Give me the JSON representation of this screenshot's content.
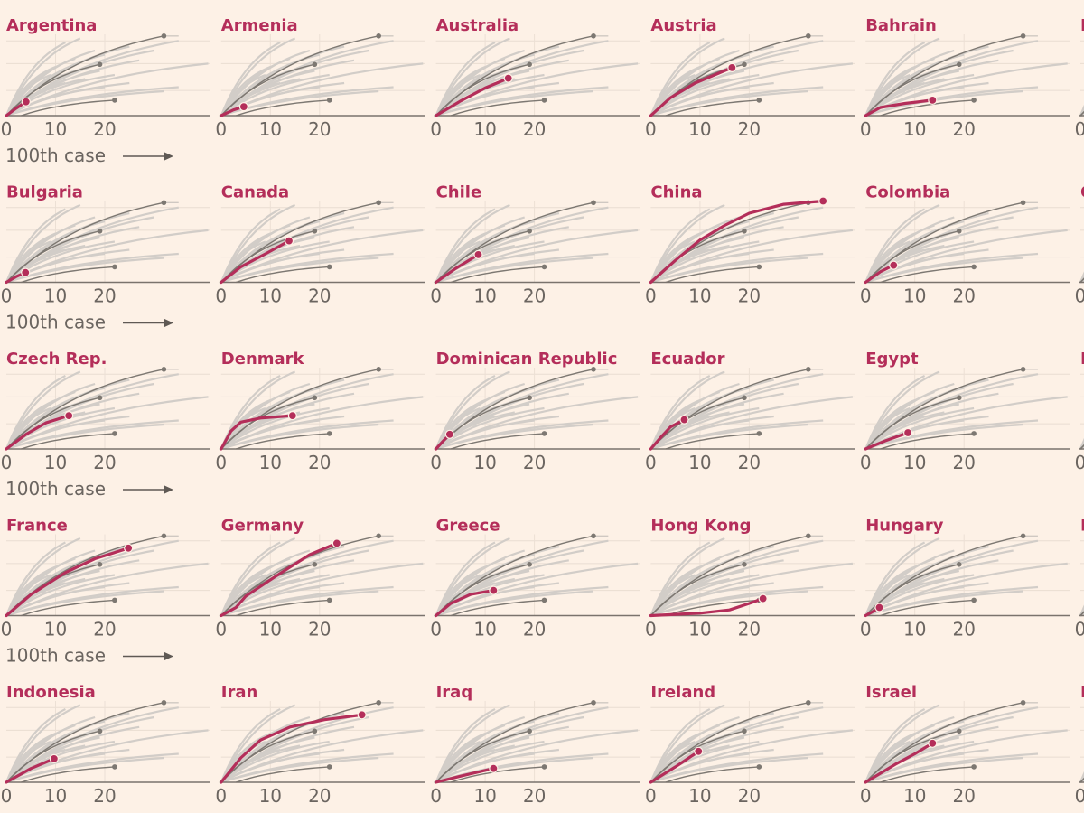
{
  "chart_data": {
    "type": "line",
    "layout": "small-multiples",
    "x_axis": {
      "ticks": [
        "0",
        "10",
        "20"
      ],
      "tick_values": [
        0,
        10,
        20
      ],
      "range": [
        0,
        42
      ],
      "label": "100th case"
    },
    "y_axis": {
      "scale": "relative level (log cases)",
      "range": [
        0,
        1
      ],
      "gridlines": [
        0.31,
        0.64,
        0.92
      ]
    },
    "highlight_color": "#b42e5a",
    "reference_color": "#7d7872",
    "background_color": "#d2cdc8",
    "reference_series": [
      {
        "end": [
          32,
          0.98
        ],
        "tail": 35
      },
      {
        "end": [
          19,
          0.63
        ],
        "tail": 19
      },
      {
        "start": 3,
        "end": [
          22,
          0.19
        ],
        "tail": 22
      }
    ],
    "background_series": [
      [
        12,
        0.9
      ],
      [
        15,
        0.95
      ],
      [
        18,
        0.8
      ],
      [
        20,
        0.75
      ],
      [
        25,
        0.85
      ],
      [
        30,
        0.8
      ],
      [
        14,
        0.7
      ],
      [
        17,
        0.6
      ],
      [
        19,
        0.55
      ],
      [
        10,
        0.6
      ],
      [
        22,
        0.5
      ],
      [
        35,
        0.35
      ],
      [
        32,
        0.3
      ],
      [
        16,
        0.45
      ],
      [
        12,
        0.4
      ],
      [
        9,
        0.5
      ],
      [
        20,
        0.35
      ],
      [
        25,
        0.4
      ],
      [
        41,
        0.64
      ],
      [
        35,
        0.92
      ],
      [
        27,
        0.68
      ],
      [
        8,
        0.3
      ]
    ],
    "panels": [
      {
        "name": "Argentina",
        "points": [
          [
            0,
            0
          ],
          [
            2,
            0.09
          ],
          [
            4,
            0.17
          ]
        ]
      },
      {
        "name": "Armenia",
        "points": [
          [
            0,
            0
          ],
          [
            2.5,
            0.07
          ],
          [
            4.6,
            0.11
          ]
        ]
      },
      {
        "name": "Australia",
        "points": [
          [
            0,
            0
          ],
          [
            5,
            0.18
          ],
          [
            10,
            0.34
          ],
          [
            14.7,
            0.46
          ]
        ]
      },
      {
        "name": "Austria",
        "points": [
          [
            0,
            0
          ],
          [
            4,
            0.22
          ],
          [
            9,
            0.4
          ],
          [
            16.5,
            0.59
          ]
        ]
      },
      {
        "name": "Bahrain",
        "points": [
          [
            0,
            0
          ],
          [
            3,
            0.1
          ],
          [
            8,
            0.15
          ],
          [
            13.6,
            0.19
          ]
        ]
      },
      {
        "name": "B",
        "points": []
      },
      {
        "name": "Bulgaria",
        "points": [
          [
            0,
            0
          ],
          [
            2,
            0.07
          ],
          [
            3.9,
            0.12
          ]
        ]
      },
      {
        "name": "Canada",
        "points": [
          [
            0,
            0
          ],
          [
            4,
            0.19
          ],
          [
            9,
            0.35
          ],
          [
            13.8,
            0.51
          ]
        ]
      },
      {
        "name": "Chile",
        "points": [
          [
            0,
            0
          ],
          [
            4,
            0.17
          ],
          [
            8.6,
            0.34
          ]
        ]
      },
      {
        "name": "China",
        "points": [
          [
            0,
            0
          ],
          [
            5,
            0.27
          ],
          [
            10,
            0.52
          ],
          [
            15,
            0.7
          ],
          [
            20,
            0.85
          ],
          [
            27,
            0.96
          ],
          [
            35,
            1.0
          ]
        ]
      },
      {
        "name": "Colombia",
        "points": [
          [
            0,
            0
          ],
          [
            3,
            0.13
          ],
          [
            5.7,
            0.21
          ]
        ]
      },
      {
        "name": "C",
        "points": []
      },
      {
        "name": "Czech Rep.",
        "points": [
          [
            0,
            0
          ],
          [
            4,
            0.18
          ],
          [
            8,
            0.32
          ],
          [
            12.7,
            0.41
          ]
        ]
      },
      {
        "name": "Denmark",
        "points": [
          [
            0,
            0
          ],
          [
            2,
            0.22
          ],
          [
            4,
            0.33
          ],
          [
            8,
            0.38
          ],
          [
            14.5,
            0.41
          ]
        ]
      },
      {
        "name": "Dominican Republic",
        "points": [
          [
            0,
            0
          ],
          [
            1.5,
            0.1
          ],
          [
            2.8,
            0.18
          ]
        ]
      },
      {
        "name": "Ecuador",
        "points": [
          [
            0,
            0
          ],
          [
            2,
            0.14
          ],
          [
            4,
            0.27
          ],
          [
            6.8,
            0.36
          ]
        ]
      },
      {
        "name": "Egypt",
        "points": [
          [
            0,
            0
          ],
          [
            4,
            0.1
          ],
          [
            8.6,
            0.2
          ]
        ]
      },
      {
        "name": "E",
        "points": []
      },
      {
        "name": "France",
        "points": [
          [
            0,
            0
          ],
          [
            5,
            0.26
          ],
          [
            12,
            0.53
          ],
          [
            18,
            0.7
          ],
          [
            24.8,
            0.83
          ]
        ]
      },
      {
        "name": "Germany",
        "points": [
          [
            0,
            0
          ],
          [
            3,
            0.1
          ],
          [
            5,
            0.24
          ],
          [
            12,
            0.52
          ],
          [
            18,
            0.75
          ],
          [
            23.5,
            0.89
          ]
        ]
      },
      {
        "name": "Greece",
        "points": [
          [
            0,
            0
          ],
          [
            3,
            0.15
          ],
          [
            7,
            0.26
          ],
          [
            11.7,
            0.31
          ]
        ]
      },
      {
        "name": "Hong Kong",
        "points": [
          [
            0,
            0
          ],
          [
            10,
            0.03
          ],
          [
            16,
            0.07
          ],
          [
            20,
            0.15
          ],
          [
            22.8,
            0.21
          ]
        ]
      },
      {
        "name": "Hungary",
        "points": [
          [
            0,
            0
          ],
          [
            1.5,
            0.05
          ],
          [
            2.8,
            0.1
          ]
        ]
      },
      {
        "name": "I",
        "points": []
      },
      {
        "name": "Indonesia",
        "points": [
          [
            0,
            0
          ],
          [
            5,
            0.17
          ],
          [
            9.7,
            0.29
          ]
        ]
      },
      {
        "name": "Iran",
        "points": [
          [
            0,
            0
          ],
          [
            4,
            0.3
          ],
          [
            8,
            0.52
          ],
          [
            14,
            0.68
          ],
          [
            21,
            0.77
          ],
          [
            28.6,
            0.83
          ]
        ]
      },
      {
        "name": "Iraq",
        "points": [
          [
            0,
            0
          ],
          [
            6,
            0.09
          ],
          [
            11.7,
            0.17
          ]
        ]
      },
      {
        "name": "Ireland",
        "points": [
          [
            0,
            0
          ],
          [
            5,
            0.19
          ],
          [
            9.7,
            0.38
          ]
        ]
      },
      {
        "name": "Israel",
        "points": [
          [
            0,
            0
          ],
          [
            6,
            0.22
          ],
          [
            10,
            0.35
          ],
          [
            13.6,
            0.48
          ]
        ]
      },
      {
        "name": "I",
        "points": []
      }
    ]
  }
}
